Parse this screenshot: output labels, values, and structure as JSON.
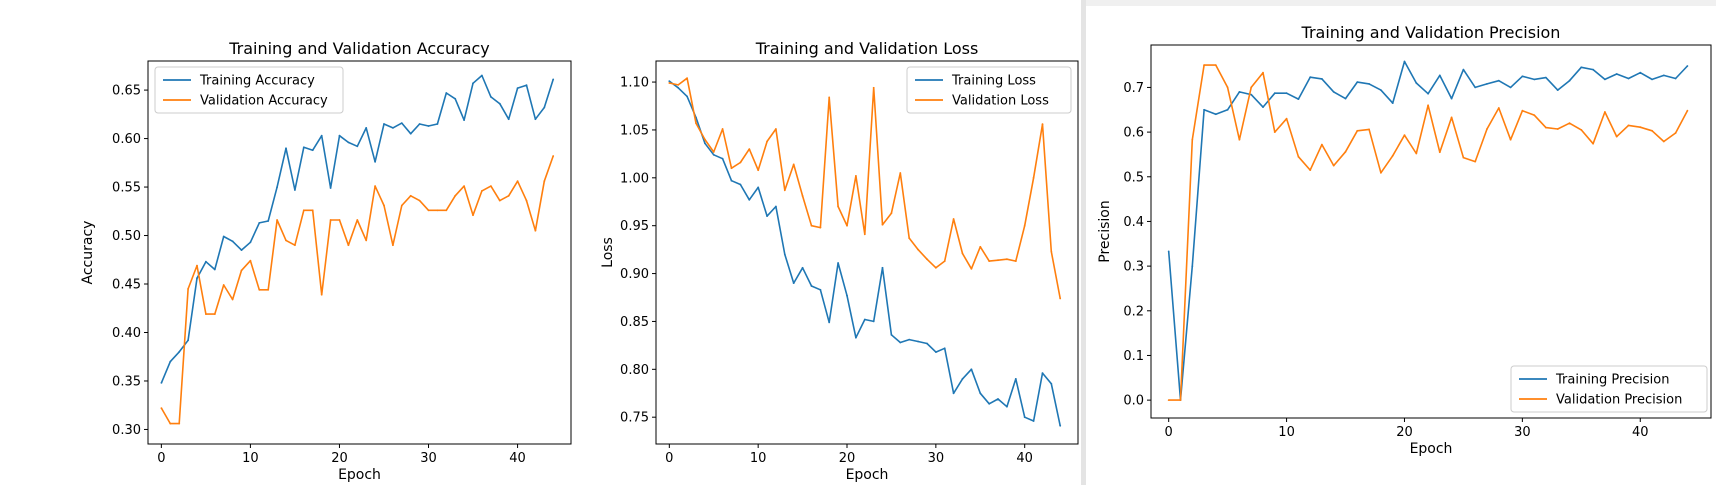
{
  "colors": {
    "train": "#1f77b4",
    "val": "#ff7f0e"
  },
  "chart_data": [
    {
      "type": "line",
      "title": "Training and Validation Accuracy",
      "xlabel": "Epoch",
      "ylabel": "Accuracy",
      "xlim": [
        -1.5,
        46
      ],
      "ylim": [
        0.285,
        0.68
      ],
      "xticks": [
        0,
        10,
        20,
        30,
        40
      ],
      "yticks": [
        0.3,
        0.35,
        0.4,
        0.45,
        0.5,
        0.55,
        0.6,
        0.65
      ],
      "ytick_labels": [
        "0.30",
        "0.35",
        "0.40",
        "0.45",
        "0.50",
        "0.55",
        "0.60",
        "0.65"
      ],
      "legend_loc": "upper left",
      "grid": false,
      "series": [
        {
          "name": "Training Accuracy",
          "color": "#1f77b4",
          "values": [
            0.348,
            0.37,
            0.38,
            0.392,
            0.456,
            0.473,
            0.465,
            0.499,
            0.494,
            0.485,
            0.493,
            0.513,
            0.515,
            0.55,
            0.59,
            0.547,
            0.591,
            0.588,
            0.603,
            0.549,
            0.603,
            0.596,
            0.592,
            0.611,
            0.576,
            0.615,
            0.611,
            0.616,
            0.605,
            0.615,
            0.613,
            0.615,
            0.647,
            0.641,
            0.619,
            0.657,
            0.665,
            0.643,
            0.636,
            0.62,
            0.652,
            0.655,
            0.62,
            0.632,
            0.661
          ]
        },
        {
          "name": "Validation Accuracy",
          "color": "#ff7f0e",
          "values": [
            0.322,
            0.306,
            0.306,
            0.445,
            0.469,
            0.419,
            0.419,
            0.449,
            0.434,
            0.464,
            0.474,
            0.444,
            0.444,
            0.516,
            0.495,
            0.49,
            0.526,
            0.526,
            0.439,
            0.516,
            0.516,
            0.49,
            0.516,
            0.495,
            0.551,
            0.531,
            0.49,
            0.531,
            0.541,
            0.536,
            0.526,
            0.526,
            0.526,
            0.541,
            0.551,
            0.521,
            0.546,
            0.551,
            0.536,
            0.541,
            0.556,
            0.536,
            0.505,
            0.556,
            0.582
          ]
        }
      ]
    },
    {
      "type": "line",
      "title": "Training and Validation Loss",
      "xlabel": "Epoch",
      "ylabel": "Loss",
      "xlim": [
        -1.5,
        46
      ],
      "ylim": [
        0.722,
        1.122
      ],
      "xticks": [
        0,
        10,
        20,
        30,
        40
      ],
      "yticks": [
        0.75,
        0.8,
        0.85,
        0.9,
        0.95,
        1.0,
        1.05,
        1.1
      ],
      "ytick_labels": [
        "0.75",
        "0.80",
        "0.85",
        "0.90",
        "0.95",
        "1.00",
        "1.05",
        "1.10"
      ],
      "legend_loc": "upper right",
      "grid": false,
      "series": [
        {
          "name": "Training Loss",
          "color": "#1f77b4",
          "values": [
            1.101,
            1.094,
            1.085,
            1.063,
            1.036,
            1.024,
            1.02,
            0.997,
            0.993,
            0.977,
            0.99,
            0.96,
            0.97,
            0.92,
            0.89,
            0.906,
            0.887,
            0.883,
            0.849,
            0.911,
            0.877,
            0.833,
            0.852,
            0.85,
            0.906,
            0.836,
            0.828,
            0.831,
            0.829,
            0.827,
            0.818,
            0.822,
            0.775,
            0.79,
            0.8,
            0.775,
            0.764,
            0.769,
            0.761,
            0.79,
            0.75,
            0.746,
            0.796,
            0.785,
            0.741
          ]
        },
        {
          "name": "Validation Loss",
          "color": "#ff7f0e",
          "values": [
            1.099,
            1.097,
            1.104,
            1.057,
            1.04,
            1.027,
            1.051,
            1.01,
            1.016,
            1.03,
            1.008,
            1.038,
            1.051,
            0.987,
            1.014,
            0.981,
            0.95,
            0.948,
            1.084,
            0.97,
            0.95,
            1.002,
            0.941,
            1.094,
            0.951,
            0.963,
            1.005,
            0.937,
            0.925,
            0.915,
            0.906,
            0.913,
            0.957,
            0.921,
            0.905,
            0.928,
            0.913,
            0.914,
            0.915,
            0.913,
            0.95,
            1.0,
            1.056,
            0.923,
            0.874
          ]
        }
      ]
    },
    {
      "type": "line",
      "title": "Training and Validation Precision",
      "xlabel": "Epoch",
      "ylabel": "Precision",
      "xlim": [
        -1.5,
        46
      ],
      "ylim": [
        -0.04,
        0.795
      ],
      "xticks": [
        0,
        10,
        20,
        30,
        40
      ],
      "yticks": [
        0.0,
        0.1,
        0.2,
        0.3,
        0.4,
        0.5,
        0.6,
        0.7
      ],
      "ytick_labels": [
        "0.0",
        "0.1",
        "0.2",
        "0.3",
        "0.4",
        "0.5",
        "0.6",
        "0.7"
      ],
      "legend_loc": "lower right",
      "grid": false,
      "series": [
        {
          "name": "Training Precision",
          "color": "#1f77b4",
          "values": [
            0.333,
            0.0,
            0.3,
            0.65,
            0.64,
            0.65,
            0.69,
            0.684,
            0.656,
            0.687,
            0.687,
            0.674,
            0.723,
            0.719,
            0.69,
            0.675,
            0.712,
            0.708,
            0.694,
            0.665,
            0.758,
            0.71,
            0.686,
            0.727,
            0.675,
            0.74,
            0.7,
            0.708,
            0.715,
            0.7,
            0.725,
            0.718,
            0.722,
            0.694,
            0.715,
            0.745,
            0.74,
            0.718,
            0.73,
            0.72,
            0.733,
            0.718,
            0.727,
            0.72,
            0.748
          ]
        },
        {
          "name": "Validation Precision",
          "color": "#ff7f0e",
          "values": [
            0.0,
            0.0,
            0.583,
            0.75,
            0.75,
            0.7,
            0.583,
            0.7,
            0.733,
            0.6,
            0.63,
            0.545,
            0.515,
            0.572,
            0.525,
            0.556,
            0.603,
            0.606,
            0.509,
            0.547,
            0.593,
            0.552,
            0.66,
            0.555,
            0.633,
            0.543,
            0.534,
            0.607,
            0.654,
            0.583,
            0.648,
            0.638,
            0.61,
            0.607,
            0.62,
            0.605,
            0.574,
            0.645,
            0.59,
            0.615,
            0.611,
            0.603,
            0.579,
            0.598,
            0.648
          ]
        }
      ]
    }
  ]
}
